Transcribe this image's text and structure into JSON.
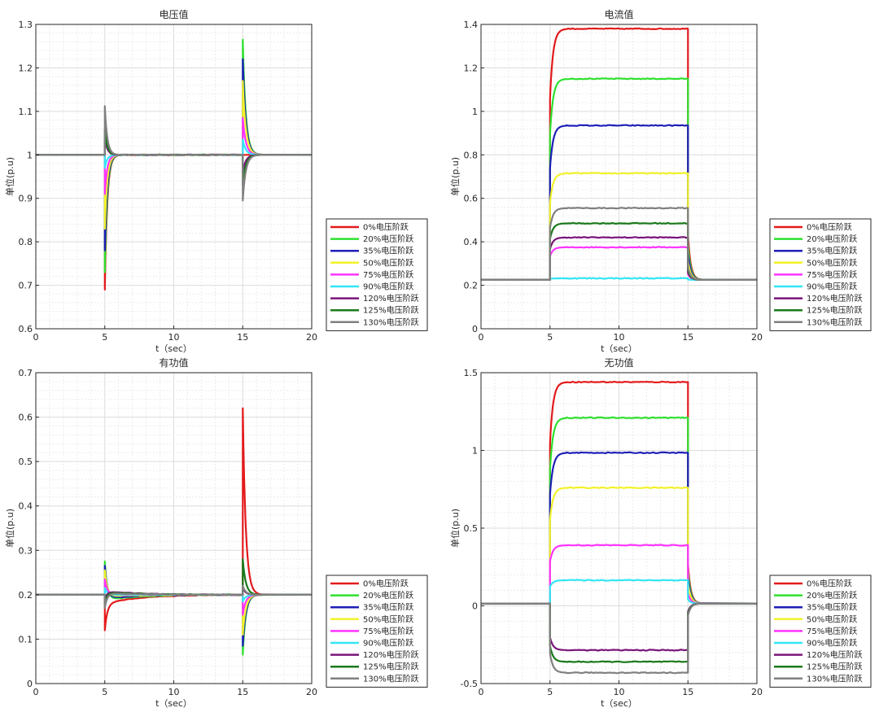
{
  "legend_entries": [
    "0%电压阶跃",
    "20%电压阶跃",
    "35%电压阶跃",
    "50%电压阶跃",
    "75%电压阶跃",
    "90%电压阶跃",
    "120%电压阶跃",
    "125%电压阶跃",
    "130%电压阶跃"
  ],
  "colors": [
    "#e31a1c",
    "#2ee02e",
    "#1f1fb8",
    "#f2f22a",
    "#ff33ff",
    "#33e6f5",
    "#7a157a",
    "#1a7a1a",
    "#808080"
  ],
  "chart_data": [
    {
      "type": "line",
      "title": "电压值",
      "xlabel": "t（sec）",
      "ylabel": "单位(p.u)",
      "xlim": [
        0,
        20
      ],
      "ylim": [
        0.6,
        1.3
      ],
      "xticks": [
        0,
        5,
        10,
        15,
        20
      ],
      "yticks": [
        0.6,
        0.7,
        0.8,
        0.9,
        1,
        1.1,
        1.2,
        1.3
      ],
      "ytick_labels": [
        "0.6",
        "0.7",
        "0.8",
        "0.9",
        "1",
        "1.1",
        "1.2",
        "1.3"
      ],
      "grid": true,
      "legend_position": "outside-right-bottom",
      "steady_value": 1.0,
      "step_on_time": 5,
      "step_off_time": 15,
      "series": [
        {
          "name": "0%电压阶跃",
          "spike_on": 0.69,
          "spike_off": 1.0
        },
        {
          "name": "20%电压阶跃",
          "spike_on": 0.73,
          "spike_off": 1.265
        },
        {
          "name": "35%电压阶跃",
          "spike_on": 0.78,
          "spike_off": 1.22
        },
        {
          "name": "50%电压阶跃",
          "spike_on": 0.83,
          "spike_off": 1.17
        },
        {
          "name": "75%电压阶跃",
          "spike_on": 0.91,
          "spike_off": 1.085
        },
        {
          "name": "90%电压阶跃",
          "spike_on": 0.97,
          "spike_off": 1.035
        },
        {
          "name": "120%电压阶跃",
          "spike_on": 1.04,
          "spike_off": 0.96
        },
        {
          "name": "125%电压阶跃",
          "spike_on": 1.06,
          "spike_off": 0.93
        },
        {
          "name": "130%电压阶跃",
          "spike_on": 1.112,
          "spike_off": 0.895
        }
      ]
    },
    {
      "type": "line",
      "title": "电流值",
      "xlabel": "t（sec）",
      "ylabel": "单位(p.u)",
      "xlim": [
        0,
        20
      ],
      "ylim": [
        0,
        1.4
      ],
      "xticks": [
        0,
        5,
        10,
        15,
        20
      ],
      "yticks": [
        0,
        0.2,
        0.4,
        0.6,
        0.8,
        1,
        1.2,
        1.4
      ],
      "ytick_labels": [
        "0",
        "0.2",
        "0.4",
        "0.6",
        "0.8",
        "1",
        "1.2",
        "1.4"
      ],
      "grid": true,
      "legend_position": "outside-right-bottom",
      "baseline": 0.225,
      "step_on_time": 5,
      "step_off_time": 15,
      "series": [
        {
          "name": "0%电压阶跃",
          "plateau": 1.38
        },
        {
          "name": "20%电压阶跃",
          "plateau": 1.15
        },
        {
          "name": "35%电压阶跃",
          "plateau": 0.935
        },
        {
          "name": "50%电压阶跃",
          "plateau": 0.715
        },
        {
          "name": "75%电压阶跃",
          "plateau": 0.375
        },
        {
          "name": "90%电压阶跃",
          "plateau": 0.232
        },
        {
          "name": "120%电压阶跃",
          "plateau": 0.42
        },
        {
          "name": "125%电压阶跃",
          "plateau": 0.485
        },
        {
          "name": "130%电压阶跃",
          "plateau": 0.555
        }
      ]
    },
    {
      "type": "line",
      "title": "有功值",
      "xlabel": "t（sec）",
      "ylabel": "单位(p.u)",
      "xlim": [
        0,
        20
      ],
      "ylim": [
        0,
        0.7
      ],
      "xticks": [
        0,
        5,
        10,
        15,
        20
      ],
      "yticks": [
        0,
        0.1,
        0.2,
        0.3,
        0.4,
        0.5,
        0.6,
        0.7
      ],
      "ytick_labels": [
        "0",
        "0.1",
        "0.2",
        "0.3",
        "0.4",
        "0.5",
        "0.6",
        "0.7"
      ],
      "grid": true,
      "legend_position": "outside-right-bottom",
      "steady_value": 0.2,
      "step_on_time": 5,
      "step_off_time": 15,
      "series": [
        {
          "name": "0%电压阶跃",
          "spike_on": 0.12,
          "spike_off": 0.62,
          "mid_offset": -0.02
        },
        {
          "name": "20%电压阶跃",
          "spike_on": 0.275,
          "spike_off": 0.065,
          "mid_offset": -0.012
        },
        {
          "name": "35%电压阶跃",
          "spike_on": 0.265,
          "spike_off": 0.085,
          "mid_offset": -0.008
        },
        {
          "name": "50%电压阶跃",
          "spike_on": 0.255,
          "spike_off": 0.11,
          "mid_offset": -0.004
        },
        {
          "name": "75%电压阶跃",
          "spike_on": 0.235,
          "spike_off": 0.155,
          "mid_offset": 0.0
        },
        {
          "name": "90%电压阶跃",
          "spike_on": 0.215,
          "spike_off": 0.185,
          "mid_offset": 0.0
        },
        {
          "name": "120%电压阶跃",
          "spike_on": 0.19,
          "spike_off": 0.215,
          "mid_offset": 0.008
        },
        {
          "name": "125%电压阶跃",
          "spike_on": 0.18,
          "spike_off": 0.28,
          "mid_offset": 0.006
        },
        {
          "name": "130%电压阶跃",
          "spike_on": 0.17,
          "spike_off": 0.22,
          "mid_offset": 0.004
        }
      ]
    },
    {
      "type": "line",
      "title": "无功值",
      "xlabel": "t（sec）",
      "ylabel": "单位(p.u)",
      "xlim": [
        0,
        20
      ],
      "ylim": [
        -0.5,
        1.5
      ],
      "xticks": [
        0,
        5,
        10,
        15,
        20
      ],
      "yticks": [
        -0.5,
        0,
        0.5,
        1,
        1.5
      ],
      "ytick_labels": [
        "-0.5",
        "0",
        "0.5",
        "1",
        "1.5"
      ],
      "grid": true,
      "legend_position": "outside-right-bottom",
      "baseline": 0.015,
      "step_on_time": 5,
      "step_off_time": 15,
      "series": [
        {
          "name": "0%电压阶跃",
          "plateau": 1.44
        },
        {
          "name": "20%电压阶跃",
          "plateau": 1.21
        },
        {
          "name": "35%电压阶跃",
          "plateau": 0.985
        },
        {
          "name": "50%电压阶跃",
          "plateau": 0.76
        },
        {
          "name": "75%电压阶跃",
          "plateau": 0.39
        },
        {
          "name": "90%电压阶跃",
          "plateau": 0.165
        },
        {
          "name": "120%电压阶跃",
          "plateau": -0.285
        },
        {
          "name": "125%电压阶跃",
          "plateau": -0.36
        },
        {
          "name": "130%电压阶跃",
          "plateau": -0.43
        }
      ]
    }
  ]
}
